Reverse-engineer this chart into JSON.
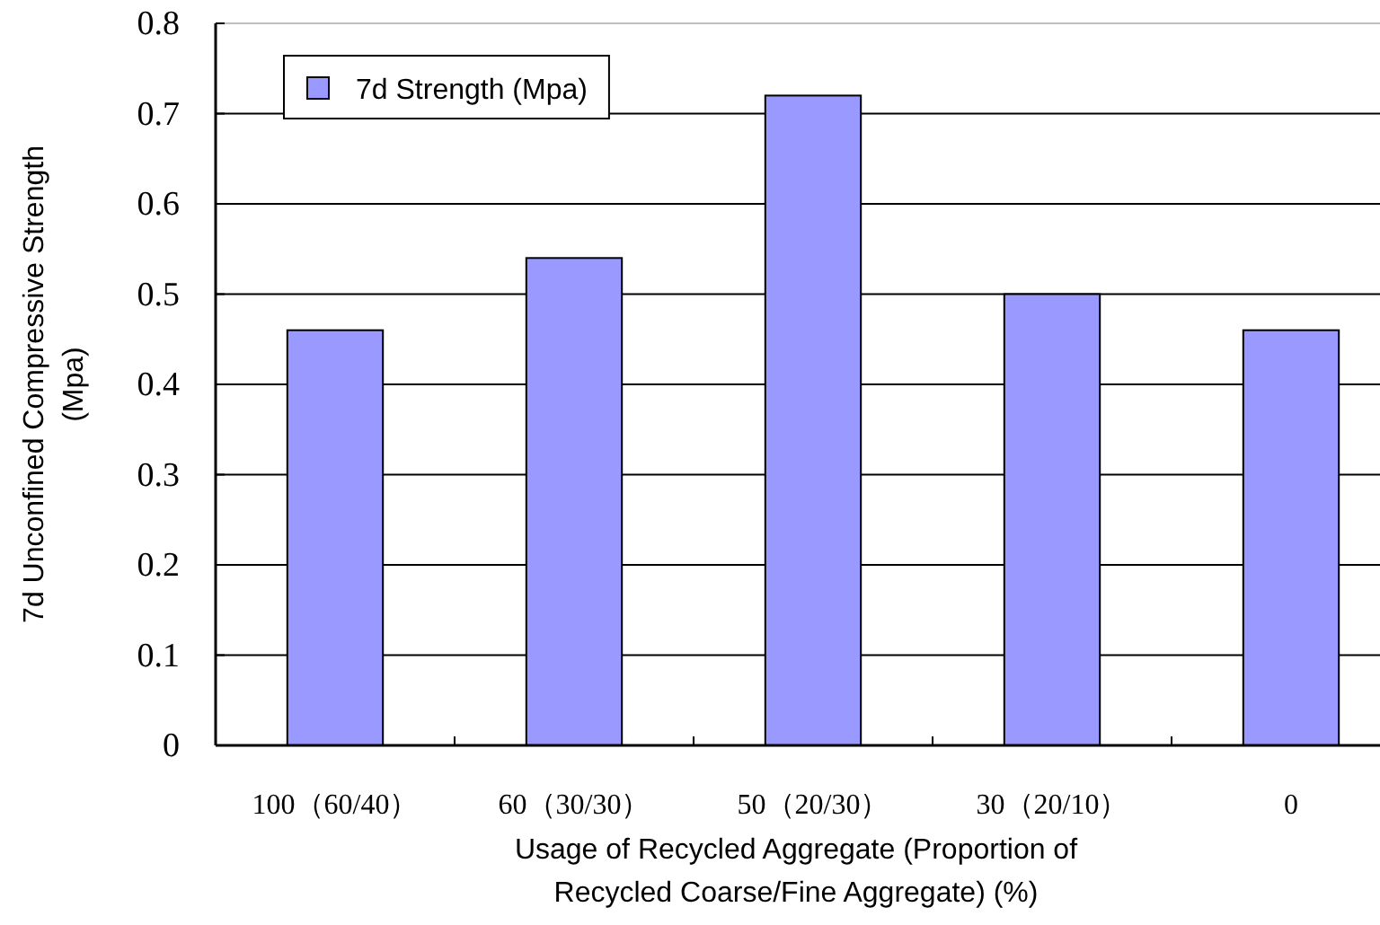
{
  "chart_data": {
    "type": "bar",
    "xlabel": "Usage of Recycled Aggregate (Proportion of\nRecycled Coarse/Fine Aggregate) (%)",
    "ylabel": "7d Unconfined Compressive Strength\n(Mpa)",
    "categories": [
      "100（60/40）",
      "60（30/30）",
      "50（20/30）",
      "30（20/10）",
      "0"
    ],
    "series": [
      {
        "name": "7d Strength (Mpa)",
        "color": "#9999ff",
        "values": [
          0.46,
          0.54,
          0.72,
          0.5,
          0.46
        ]
      }
    ],
    "ylim": [
      0,
      0.8
    ],
    "yticks": [
      0,
      0.1,
      0.2,
      0.3,
      0.4,
      0.5,
      0.6,
      0.7,
      0.8
    ],
    "grid": "y",
    "legend": "top left"
  }
}
